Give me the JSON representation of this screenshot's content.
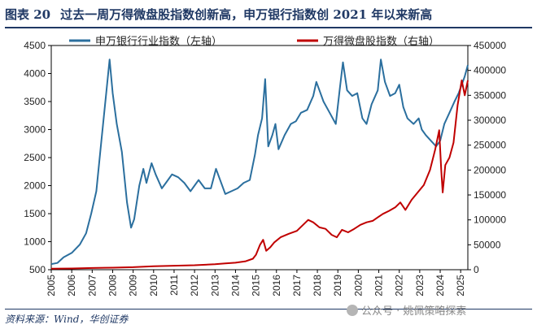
{
  "figure": {
    "label": "图表 20",
    "title": "过去一周万得微盘股指数创新高，申万银行指数创 2021 年以来新高",
    "source": "资料来源：Wind，华创证券",
    "watermark": "公众号 · 姚佩策略探索"
  },
  "chart_data": {
    "type": "line",
    "x_ticks": [
      "2005",
      "2006",
      "2007",
      "2008",
      "2009",
      "2010",
      "2011",
      "2012",
      "2013",
      "2014",
      "2015",
      "2016",
      "2017",
      "2018",
      "2019",
      "2020",
      "2021",
      "2022",
      "2023",
      "2024",
      "2025"
    ],
    "x_range": [
      2005,
      2025.35
    ],
    "y_left": {
      "ticks": [
        500,
        1000,
        1500,
        2000,
        2500,
        3000,
        3500,
        4000,
        4500
      ],
      "range": [
        500,
        4500
      ]
    },
    "y_right": {
      "ticks": [
        0,
        50000,
        100000,
        150000,
        200000,
        250000,
        300000,
        350000,
        400000,
        450000
      ],
      "range": [
        0,
        450000
      ]
    },
    "legend_position": "top",
    "grid": false,
    "series": [
      {
        "name": "申万银行行业指数（左轴）",
        "axis": "left",
        "color": "#2b6f9e",
        "points": [
          [
            2005.0,
            600
          ],
          [
            2005.3,
            620
          ],
          [
            2005.6,
            720
          ],
          [
            2006.0,
            800
          ],
          [
            2006.4,
            950
          ],
          [
            2006.7,
            1150
          ],
          [
            2006.95,
            1500
          ],
          [
            2007.2,
            1900
          ],
          [
            2007.45,
            2800
          ],
          [
            2007.7,
            3700
          ],
          [
            2007.85,
            4250
          ],
          [
            2008.0,
            3650
          ],
          [
            2008.2,
            3100
          ],
          [
            2008.45,
            2600
          ],
          [
            2008.7,
            1700
          ],
          [
            2008.9,
            1250
          ],
          [
            2009.05,
            1400
          ],
          [
            2009.3,
            2000
          ],
          [
            2009.5,
            2300
          ],
          [
            2009.65,
            2050
          ],
          [
            2009.9,
            2400
          ],
          [
            2010.1,
            2200
          ],
          [
            2010.4,
            1950
          ],
          [
            2010.6,
            2050
          ],
          [
            2010.9,
            2200
          ],
          [
            2011.2,
            2150
          ],
          [
            2011.5,
            2050
          ],
          [
            2011.8,
            1900
          ],
          [
            2012.0,
            2000
          ],
          [
            2012.2,
            2100
          ],
          [
            2012.5,
            1950
          ],
          [
            2012.8,
            1950
          ],
          [
            2013.05,
            2300
          ],
          [
            2013.2,
            2150
          ],
          [
            2013.5,
            1850
          ],
          [
            2013.8,
            1900
          ],
          [
            2014.1,
            1950
          ],
          [
            2014.4,
            2050
          ],
          [
            2014.7,
            2100
          ],
          [
            2014.95,
            2550
          ],
          [
            2015.1,
            2900
          ],
          [
            2015.3,
            3200
          ],
          [
            2015.45,
            3900
          ],
          [
            2015.6,
            2700
          ],
          [
            2015.8,
            2900
          ],
          [
            2015.95,
            3100
          ],
          [
            2016.1,
            2650
          ],
          [
            2016.4,
            2900
          ],
          [
            2016.7,
            3100
          ],
          [
            2016.95,
            3150
          ],
          [
            2017.2,
            3300
          ],
          [
            2017.5,
            3350
          ],
          [
            2017.8,
            3600
          ],
          [
            2017.95,
            3850
          ],
          [
            2018.1,
            3700
          ],
          [
            2018.3,
            3500
          ],
          [
            2018.6,
            3300
          ],
          [
            2018.9,
            3100
          ],
          [
            2019.1,
            3750
          ],
          [
            2019.25,
            4200
          ],
          [
            2019.45,
            3700
          ],
          [
            2019.7,
            3600
          ],
          [
            2019.95,
            3650
          ],
          [
            2020.2,
            3200
          ],
          [
            2020.4,
            3100
          ],
          [
            2020.65,
            3450
          ],
          [
            2020.95,
            3700
          ],
          [
            2021.1,
            4250
          ],
          [
            2021.3,
            3850
          ],
          [
            2021.55,
            3600
          ],
          [
            2021.8,
            3650
          ],
          [
            2022.0,
            3800
          ],
          [
            2022.2,
            3400
          ],
          [
            2022.4,
            3200
          ],
          [
            2022.7,
            3100
          ],
          [
            2022.95,
            3200
          ],
          [
            2023.1,
            3000
          ],
          [
            2023.3,
            2900
          ],
          [
            2023.55,
            2800
          ],
          [
            2023.8,
            2700
          ],
          [
            2024.0,
            2800
          ],
          [
            2024.2,
            3100
          ],
          [
            2024.45,
            3300
          ],
          [
            2024.7,
            3500
          ],
          [
            2024.9,
            3650
          ],
          [
            2025.05,
            3800
          ],
          [
            2025.2,
            3950
          ],
          [
            2025.35,
            4150
          ]
        ]
      },
      {
        "name": "万得微盘股指数（右轴）",
        "axis": "right",
        "color": "#c00000",
        "points": [
          [
            2005.0,
            2000
          ],
          [
            2006.0,
            2500
          ],
          [
            2007.0,
            3500
          ],
          [
            2008.0,
            4000
          ],
          [
            2009.0,
            5000
          ],
          [
            2010.0,
            7000
          ],
          [
            2011.0,
            8000
          ],
          [
            2012.0,
            9000
          ],
          [
            2013.0,
            11000
          ],
          [
            2013.5,
            12500
          ],
          [
            2014.0,
            14000
          ],
          [
            2014.5,
            17000
          ],
          [
            2014.85,
            22000
          ],
          [
            2015.0,
            30000
          ],
          [
            2015.2,
            50000
          ],
          [
            2015.35,
            60000
          ],
          [
            2015.5,
            38000
          ],
          [
            2015.7,
            45000
          ],
          [
            2015.9,
            55000
          ],
          [
            2016.2,
            65000
          ],
          [
            2016.6,
            72000
          ],
          [
            2017.0,
            78000
          ],
          [
            2017.3,
            90000
          ],
          [
            2017.55,
            100000
          ],
          [
            2017.8,
            95000
          ],
          [
            2018.1,
            85000
          ],
          [
            2018.4,
            82000
          ],
          [
            2018.7,
            70000
          ],
          [
            2018.95,
            65000
          ],
          [
            2019.2,
            80000
          ],
          [
            2019.5,
            75000
          ],
          [
            2019.8,
            82000
          ],
          [
            2020.1,
            90000
          ],
          [
            2020.4,
            95000
          ],
          [
            2020.7,
            98000
          ],
          [
            2020.95,
            105000
          ],
          [
            2021.2,
            112000
          ],
          [
            2021.5,
            118000
          ],
          [
            2021.8,
            125000
          ],
          [
            2022.05,
            135000
          ],
          [
            2022.3,
            120000
          ],
          [
            2022.6,
            140000
          ],
          [
            2022.9,
            155000
          ],
          [
            2023.2,
            170000
          ],
          [
            2023.5,
            200000
          ],
          [
            2023.75,
            240000
          ],
          [
            2023.95,
            280000
          ],
          [
            2024.05,
            200000
          ],
          [
            2024.12,
            155000
          ],
          [
            2024.25,
            210000
          ],
          [
            2024.45,
            225000
          ],
          [
            2024.65,
            255000
          ],
          [
            2024.85,
            330000
          ],
          [
            2025.05,
            380000
          ],
          [
            2025.2,
            350000
          ],
          [
            2025.35,
            380000
          ]
        ]
      }
    ]
  }
}
